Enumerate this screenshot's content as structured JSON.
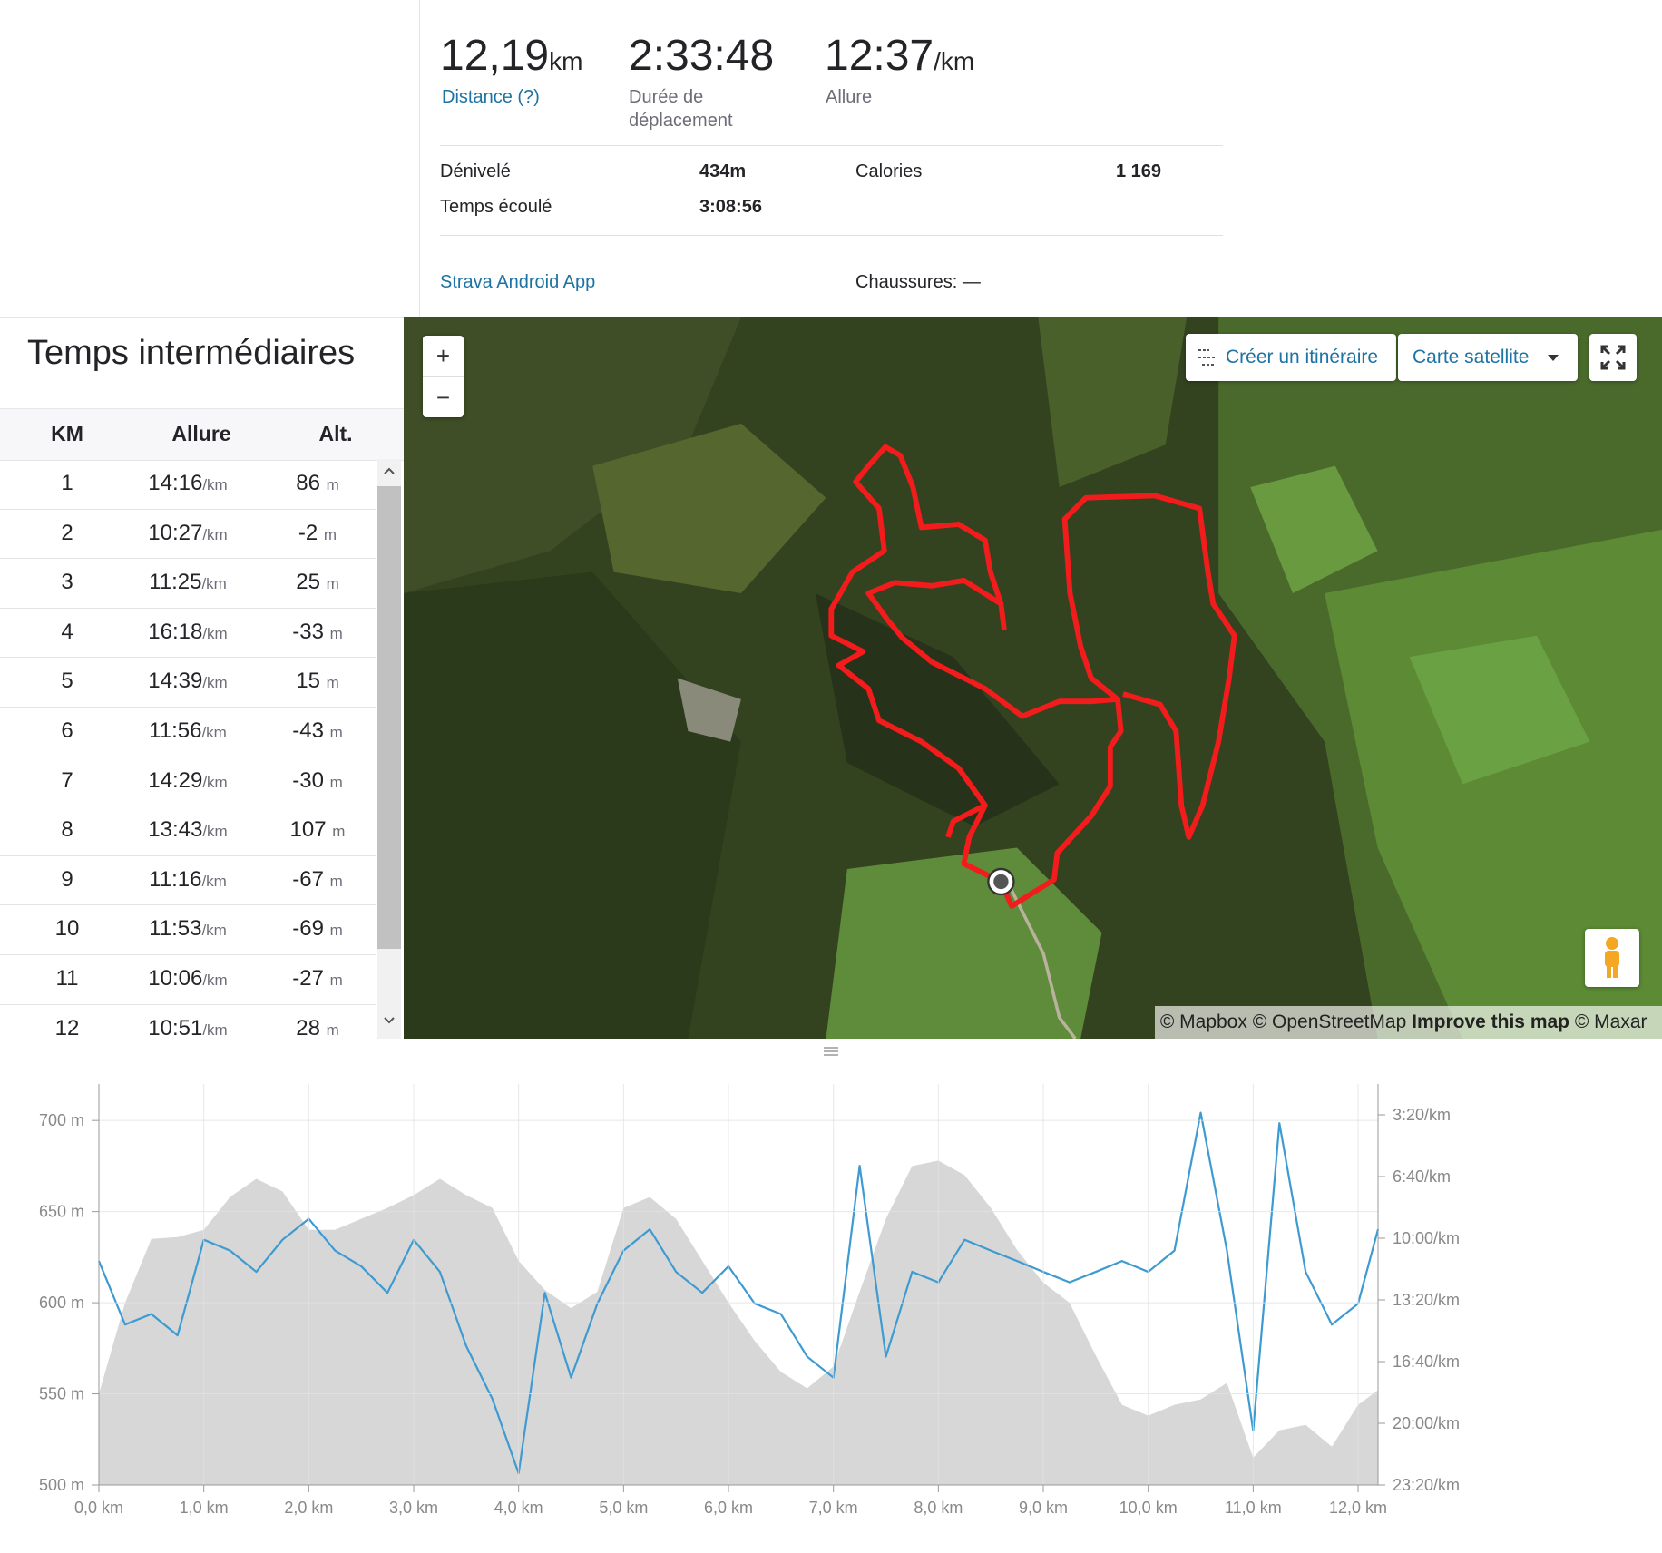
{
  "summary": {
    "distance": {
      "value": "12,19",
      "unit": "km",
      "label": "Distance (?)"
    },
    "moving_time": {
      "value": "2:33:48",
      "label": "Durée de déplacement"
    },
    "pace": {
      "value": "12:37",
      "unit": "/km",
      "label": "Allure"
    },
    "details": [
      {
        "label": "Dénivelé",
        "value": "434m"
      },
      {
        "label": "Calories",
        "value": "1 169"
      },
      {
        "label": "Temps écoulé",
        "value": "3:08:56"
      }
    ],
    "device": "Strava Android App",
    "shoes": "Chaussures: —"
  },
  "splits": {
    "title": "Temps intermédiaires",
    "headers": [
      "KM",
      "Allure",
      "Alt."
    ],
    "pace_unit": "/km",
    "alt_unit": "m",
    "rows": [
      [
        "1",
        "14:16",
        "86"
      ],
      [
        "2",
        "10:27",
        "-2"
      ],
      [
        "3",
        "11:25",
        "25"
      ],
      [
        "4",
        "16:18",
        "-33"
      ],
      [
        "5",
        "14:39",
        "15"
      ],
      [
        "6",
        "11:56",
        "-43"
      ],
      [
        "7",
        "14:29",
        "-30"
      ],
      [
        "8",
        "13:43",
        "107"
      ],
      [
        "9",
        "11:16",
        "-67"
      ],
      [
        "10",
        "11:53",
        "-69"
      ],
      [
        "11",
        "10:06",
        "-27"
      ],
      [
        "12",
        "10:51",
        "28"
      ]
    ]
  },
  "map": {
    "zoom_in": "+",
    "zoom_out": "−",
    "route_button": "Créer un itinéraire",
    "layer_button": "Carte satellite",
    "attribution": [
      "© Mapbox",
      "© OpenStreetMap",
      "Improve this map",
      "© Maxar"
    ]
  },
  "chart_data": {
    "type": "line",
    "grid": true,
    "x": [
      0,
      0.25,
      0.5,
      0.75,
      1.0,
      1.25,
      1.5,
      1.75,
      2.0,
      2.25,
      2.5,
      2.75,
      3.0,
      3.25,
      3.5,
      3.75,
      4.0,
      4.25,
      4.5,
      4.75,
      5.0,
      5.25,
      5.5,
      5.75,
      6.0,
      6.25,
      6.5,
      6.75,
      7.0,
      7.25,
      7.5,
      7.75,
      8.0,
      8.25,
      8.5,
      8.75,
      9.0,
      9.25,
      9.5,
      9.75,
      10.0,
      10.25,
      10.5,
      10.75,
      11.0,
      11.25,
      11.5,
      11.75,
      12.0,
      12.19
    ],
    "series": [
      {
        "type": "area",
        "color": "#d7d7d7",
        "values": [
          550,
          600,
          635,
          636,
          640,
          658,
          668,
          661,
          640,
          640,
          646,
          652,
          659,
          668,
          659,
          652,
          623,
          607,
          597,
          606,
          652,
          658,
          646,
          623,
          600,
          579,
          562,
          553,
          565,
          606,
          646,
          675,
          678,
          670,
          652,
          629,
          611,
          600,
          571,
          544,
          538,
          544,
          547,
          556,
          515,
          530,
          533,
          521,
          544,
          552
        ]
      },
      {
        "type": "line",
        "axis": "y2",
        "color": "#3d9bd1",
        "values": [
          674,
          880,
          846,
          915,
          605,
          640,
          709,
          605,
          537,
          640,
          691,
          777,
          605,
          709,
          949,
          1121,
          1362,
          777,
          1052,
          812,
          640,
          571,
          709,
          777,
          691,
          812,
          846,
          984,
          1052,
          365,
          984,
          709,
          743,
          605,
          640,
          674,
          709,
          743,
          709,
          674,
          709,
          640,
          193,
          640,
          1224,
          227,
          709,
          880,
          812,
          571
        ]
      }
    ],
    "xlim": [
      0,
      12.19
    ],
    "xticks": [
      {
        "value": 0,
        "label": "0,0 km"
      },
      {
        "value": 1,
        "label": "1,0 km"
      },
      {
        "value": 2,
        "label": "2,0 km"
      },
      {
        "value": 3,
        "label": "3,0 km"
      },
      {
        "value": 4,
        "label": "4,0 km"
      },
      {
        "value": 5,
        "label": "5,0 km"
      },
      {
        "value": 6,
        "label": "6,0 km"
      },
      {
        "value": 7,
        "label": "7,0 km"
      },
      {
        "value": 8,
        "label": "8,0 km"
      },
      {
        "value": 9,
        "label": "9,0 km"
      },
      {
        "value": 10,
        "label": "10,0 km"
      },
      {
        "value": 11,
        "label": "11,0 km"
      },
      {
        "value": 12,
        "label": "12,0 km"
      }
    ],
    "ylim": [
      500,
      720
    ],
    "yticks": [
      {
        "value": 500,
        "label": "500 m"
      },
      {
        "value": 550,
        "label": "550 m"
      },
      {
        "value": 600,
        "label": "600 m"
      },
      {
        "value": 650,
        "label": "650 m"
      },
      {
        "value": 700,
        "label": "700 m"
      }
    ],
    "y2lim": [
      1400,
      100
    ],
    "y2ticks": [
      {
        "value": 200,
        "label": "3:20/km"
      },
      {
        "value": 400,
        "label": "6:40/km"
      },
      {
        "value": 600,
        "label": "10:00/km"
      },
      {
        "value": 800,
        "label": "13:20/km"
      },
      {
        "value": 1000,
        "label": "16:40/km"
      },
      {
        "value": 1200,
        "label": "20:00/km"
      },
      {
        "value": 1400,
        "label": "23:20/km"
      }
    ]
  }
}
